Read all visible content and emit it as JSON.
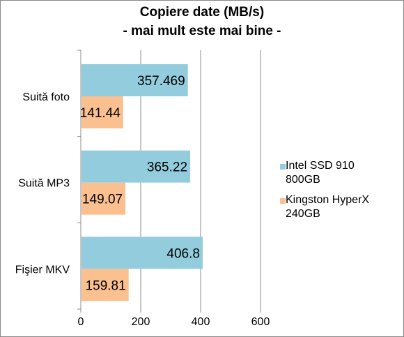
{
  "chart_data": {
    "type": "bar",
    "orientation": "horizontal",
    "title": "Copiere  date (MB/s)",
    "subtitle": "- mai mult este mai bine -",
    "categories": [
      "Suită foto",
      "Suită MP3",
      "Fişier MKV"
    ],
    "series": [
      {
        "name": "Intel SSD 910 800GB",
        "values": [
          357.469,
          365.22,
          406.8
        ],
        "color": "#93cddd",
        "labels": [
          "357.469",
          "365.22",
          "406.8"
        ]
      },
      {
        "name": "Kingston HyperX 240GB",
        "values": [
          141.44,
          149.07,
          159.81
        ],
        "color": "#fac090",
        "labels": [
          "141.44",
          "149.07",
          "159.81"
        ]
      }
    ],
    "legend_lines": [
      [
        "Intel SSD 910",
        "800GB"
      ],
      [
        "Kingston HyperX",
        "240GB"
      ]
    ],
    "xlim": [
      0,
      600
    ],
    "xticks": [
      "0",
      "200",
      "400",
      "600"
    ],
    "grid": true,
    "legend": "right"
  }
}
